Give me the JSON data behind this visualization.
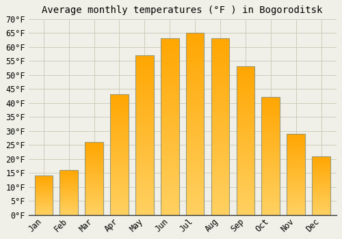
{
  "title": "Average monthly temperatures (°F ) in Bogoroditsk",
  "months": [
    "Jan",
    "Feb",
    "Mar",
    "Apr",
    "May",
    "Jun",
    "Jul",
    "Aug",
    "Sep",
    "Oct",
    "Nov",
    "Dec"
  ],
  "values": [
    14,
    16,
    26,
    43,
    57,
    63,
    65,
    63,
    53,
    42,
    29,
    21
  ],
  "bar_color_light": "#FFD060",
  "bar_color_dark": "#FFA500",
  "bar_border_color": "#999977",
  "ylim": [
    0,
    70
  ],
  "yticks": [
    0,
    5,
    10,
    15,
    20,
    25,
    30,
    35,
    40,
    45,
    50,
    55,
    60,
    65,
    70
  ],
  "ytick_labels": [
    "0°F",
    "5°F",
    "10°F",
    "15°F",
    "20°F",
    "25°F",
    "30°F",
    "35°F",
    "40°F",
    "45°F",
    "50°F",
    "55°F",
    "60°F",
    "65°F",
    "70°F"
  ],
  "background_color": "#F0F0E8",
  "grid_color": "#CCCCBB",
  "title_fontsize": 10,
  "tick_fontsize": 8.5,
  "bar_linewidth": 0.8,
  "bar_width": 0.72
}
